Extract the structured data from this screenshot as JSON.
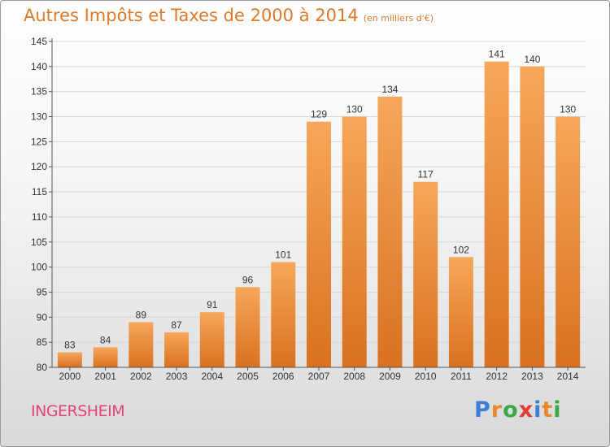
{
  "header": {
    "title": "Autres Impôts et Taxes de 2000 à 2014",
    "unit": "(en milliers d'€)"
  },
  "footer": {
    "commune": "INGERSHEIM",
    "logo_letters": [
      "P",
      "r",
      "o",
      "x",
      "i",
      "t",
      "i"
    ],
    "logo_colors": [
      "#3a7fd5",
      "#e8892b",
      "#3aa845",
      "#e03a3a",
      "#3a7fd5",
      "#e8892b",
      "#3aa845"
    ]
  },
  "chart_data": {
    "type": "bar",
    "title": "Autres Impôts et Taxes de 2000 à 2014",
    "subtitle": "(en milliers d'€)",
    "xlabel": "",
    "ylabel": "",
    "categories": [
      "2000",
      "2001",
      "2002",
      "2003",
      "2004",
      "2005",
      "2006",
      "2007",
      "2008",
      "2009",
      "2010",
      "2011",
      "2012",
      "2013",
      "2014"
    ],
    "values": [
      83,
      84,
      89,
      87,
      91,
      96,
      101,
      129,
      130,
      134,
      117,
      102,
      141,
      140,
      130
    ],
    "data_labels": [
      "83",
      "84",
      "89",
      "87",
      "91",
      "96",
      "101",
      "129",
      "130",
      "134",
      "117",
      "102",
      "141",
      "140",
      "130"
    ],
    "ylim": [
      80,
      145
    ],
    "yticks": [
      "80",
      "85",
      "90",
      "95",
      "100",
      "105",
      "110",
      "115",
      "120",
      "125",
      "130",
      "135",
      "140",
      "145"
    ],
    "grid": true,
    "bar_color_top": "#f6a75a",
    "bar_color_bottom": "#d9711f",
    "grid_color": "#d8d8d8"
  }
}
